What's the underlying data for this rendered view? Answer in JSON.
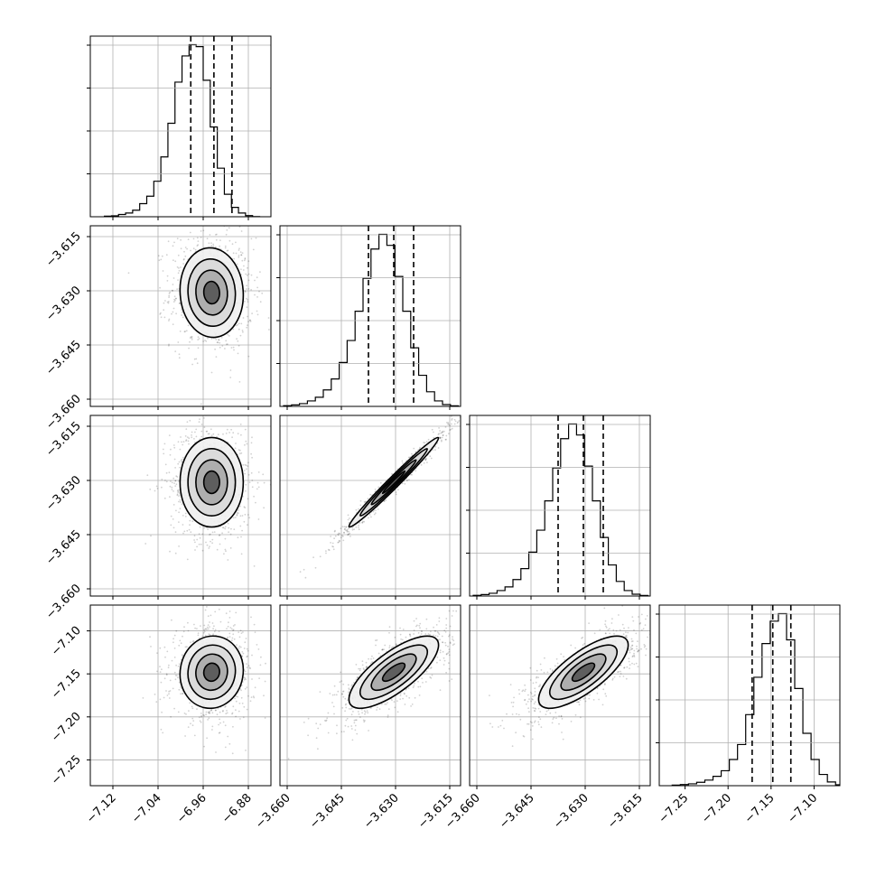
{
  "chart_data": {
    "type": "corner",
    "grid": true,
    "parameters": [
      {
        "id": "p1",
        "range": [
          -7.16,
          -6.84
        ],
        "ticks": [
          "−7.12",
          "−7.04",
          "−6.96",
          "−6.88"
        ],
        "tick_values": [
          -7.12,
          -7.04,
          -6.96,
          -6.88
        ],
        "quantiles": [
          -6.982,
          -6.941,
          -6.909
        ]
      },
      {
        "id": "p2",
        "range": [
          -3.662,
          -3.612
        ],
        "ticks": [
          "−3.660",
          "−3.645",
          "−3.630",
          "−3.615"
        ],
        "tick_values": [
          -3.66,
          -3.645,
          -3.63,
          -3.615
        ],
        "quantiles": [
          -3.6375,
          -3.6305,
          -3.625
        ]
      },
      {
        "id": "p3",
        "range": [
          -3.662,
          -3.612
        ],
        "ticks": [
          "−3.660",
          "−3.645",
          "−3.630",
          "−3.615"
        ],
        "tick_values": [
          -3.66,
          -3.645,
          -3.63,
          -3.615
        ],
        "quantiles": [
          -3.6375,
          -3.6305,
          -3.625
        ]
      },
      {
        "id": "p4",
        "range": [
          -7.28,
          -7.07
        ],
        "ticks": [
          "−7.25",
          "−7.20",
          "−7.15",
          "−7.10"
        ],
        "tick_values": [
          -7.25,
          -7.2,
          -7.15,
          -7.1
        ],
        "quantiles": [
          -7.172,
          -7.148,
          -7.127
        ]
      }
    ],
    "histograms": [
      {
        "param": "p1",
        "counts": [
          0.3,
          0.5,
          1.2,
          2,
          3.5,
          7,
          11,
          19,
          32,
          50,
          72,
          86,
          92,
          91,
          73,
          48,
          26,
          12,
          5,
          2,
          0.6,
          0.1
        ],
        "bin_start": -7.135,
        "bin_width": 0.0125
      },
      {
        "param": "p2",
        "counts": [
          0.4,
          0.8,
          1.5,
          3,
          5,
          9,
          15,
          24,
          36,
          52,
          70,
          86,
          94,
          88,
          71,
          52,
          32,
          17,
          8,
          3,
          1,
          0.3
        ],
        "bin_start": -3.661,
        "bin_width": 0.0022
      },
      {
        "param": "p3",
        "counts": [
          0.4,
          0.8,
          1.5,
          3,
          5,
          9,
          15,
          24,
          36,
          52,
          70,
          86,
          94,
          88,
          71,
          52,
          32,
          17,
          8,
          3,
          1,
          0.3
        ],
        "bin_start": -3.661,
        "bin_width": 0.0022
      },
      {
        "param": "p4",
        "counts": [
          0.3,
          0.6,
          1,
          1.8,
          3,
          5,
          8,
          14,
          22,
          38,
          58,
          76,
          88,
          92,
          78,
          52,
          28,
          14,
          6,
          2,
          0.5
        ],
        "bin_start": -7.265,
        "bin_width": 0.0095
      }
    ],
    "pairs": [
      {
        "x": "p1",
        "y": "p2",
        "center": [
          -6.945,
          -3.6305
        ],
        "sigma": [
          0.028,
          0.0062
        ],
        "rho": -0.05
      },
      {
        "x": "p1",
        "y": "p3",
        "center": [
          -6.945,
          -3.6305
        ],
        "sigma": [
          0.028,
          0.0062
        ],
        "rho": 0.0
      },
      {
        "x": "p2",
        "y": "p3",
        "center": [
          -3.6305,
          -3.6305
        ],
        "sigma": [
          0.0062,
          0.0062
        ],
        "rho": 0.985
      },
      {
        "x": "p1",
        "y": "p4",
        "center": [
          -6.945,
          -7.148
        ],
        "sigma": [
          0.028,
          0.021
        ],
        "rho": 0.05
      },
      {
        "x": "p2",
        "y": "p4",
        "center": [
          -3.6305,
          -7.148
        ],
        "sigma": [
          0.0062,
          0.021
        ],
        "rho": 0.75
      },
      {
        "x": "p3",
        "y": "p4",
        "center": [
          -3.6305,
          -7.148
        ],
        "sigma": [
          0.0062,
          0.021
        ],
        "rho": 0.75
      }
    ],
    "contour_levels": [
      0.5,
      1.0,
      1.5,
      2.0
    ],
    "scatter_color": "#000000"
  }
}
